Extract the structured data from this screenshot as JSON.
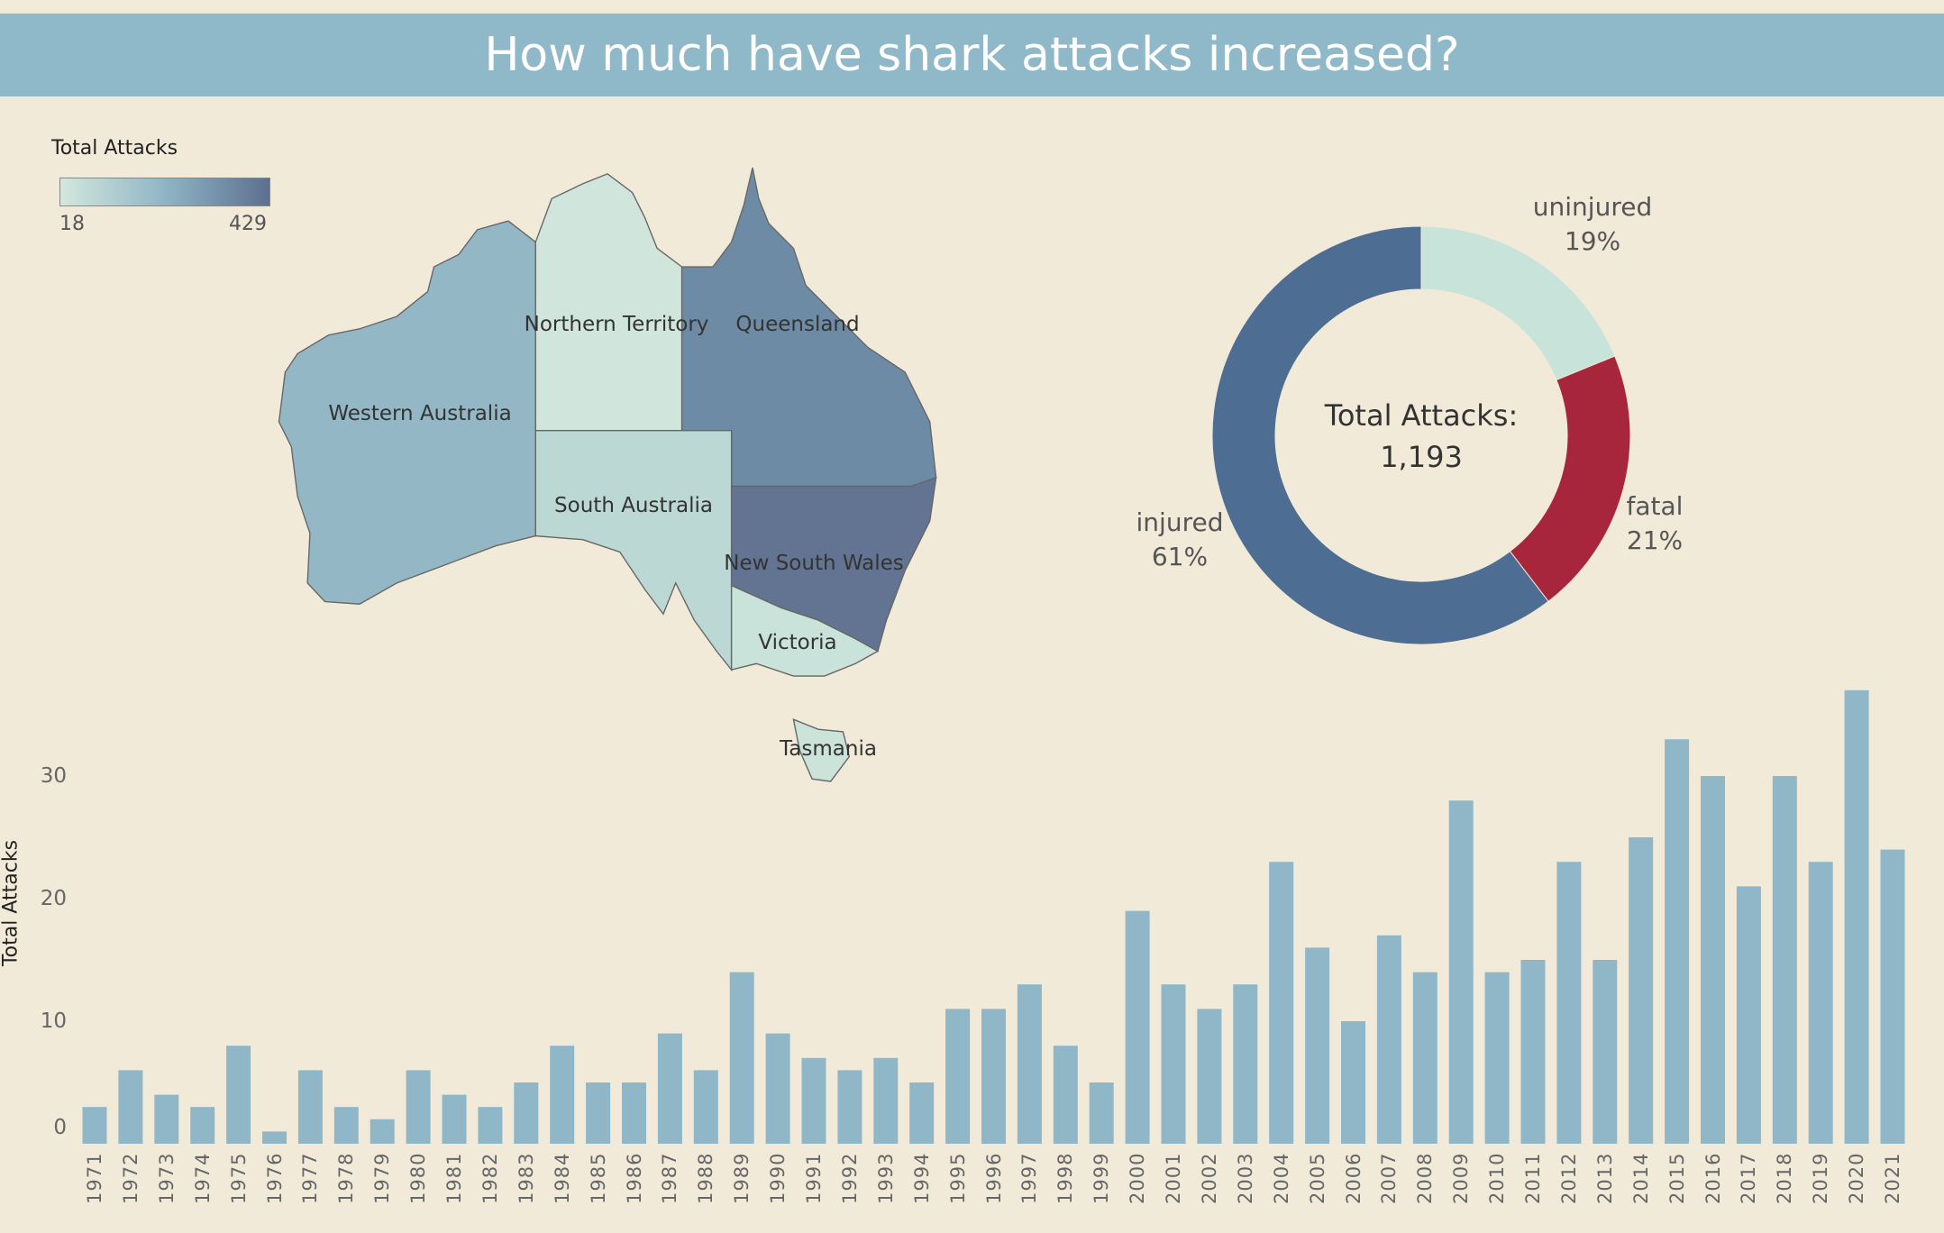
{
  "title": "How much have shark attacks increased?",
  "map_legend": {
    "title": "Total Attacks",
    "min": "18",
    "max": "429",
    "colors": [
      "#d3e7dd",
      "#8fb5c5",
      "#5d6f90"
    ]
  },
  "map_regions": [
    {
      "name": "Western Australia",
      "color": "#93b7c5"
    },
    {
      "name": "Northern Territory",
      "color": "#d0e5db"
    },
    {
      "name": "Queensland",
      "color": "#6e8ba5"
    },
    {
      "name": "South Australia",
      "color": "#bcd8d4"
    },
    {
      "name": "New South Wales",
      "color": "#627491"
    },
    {
      "name": "Victoria",
      "color": "#c9e2da"
    },
    {
      "name": "Tasmania",
      "color": "#cce3d9"
    }
  ],
  "donut": {
    "center_label": "Total Attacks:",
    "center_value": "1,193",
    "segments": [
      {
        "name": "uninjured",
        "pct": 19,
        "pct_label": "19%",
        "color": "#c8e3da"
      },
      {
        "name": "fatal",
        "pct": 21,
        "pct_label": "21%",
        "color": "#a8263b"
      },
      {
        "name": "injured",
        "pct": 61,
        "pct_label": "61%",
        "color": "#4d6d93"
      }
    ]
  },
  "chart_data": {
    "type": "bar",
    "title": "",
    "xlabel": "",
    "ylabel": "Total Attacks",
    "ylim": [
      0,
      38
    ],
    "yticks": [
      "0",
      "10",
      "20",
      "30"
    ],
    "color": "#8fb7c8",
    "categories": [
      "1971",
      "1972",
      "1973",
      "1974",
      "1975",
      "1976",
      "1977",
      "1978",
      "1979",
      "1980",
      "1981",
      "1982",
      "1983",
      "1984",
      "1985",
      "1986",
      "1987",
      "1988",
      "1989",
      "1990",
      "1991",
      "1992",
      "1993",
      "1994",
      "1995",
      "1996",
      "1997",
      "1998",
      "1999",
      "2000",
      "2001",
      "2002",
      "2003",
      "2004",
      "2005",
      "2006",
      "2007",
      "2008",
      "2009",
      "2010",
      "2011",
      "2012",
      "2013",
      "2014",
      "2015",
      "2016",
      "2017",
      "2018",
      "2019",
      "2020",
      "2021"
    ],
    "values": [
      3,
      6,
      4,
      3,
      8,
      1,
      6,
      3,
      2,
      6,
      4,
      3,
      5,
      8,
      5,
      5,
      9,
      6,
      14,
      9,
      7,
      6,
      7,
      5,
      11,
      11,
      13,
      8,
      5,
      19,
      13,
      11,
      13,
      23,
      16,
      10,
      17,
      14,
      28,
      14,
      15,
      23,
      15,
      25,
      33,
      30,
      21,
      30,
      23,
      37,
      24
    ]
  }
}
